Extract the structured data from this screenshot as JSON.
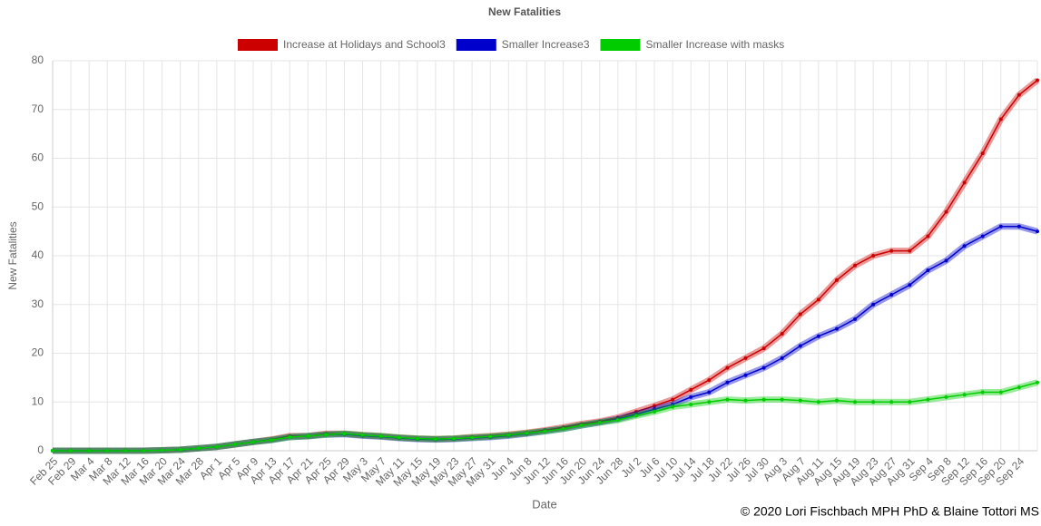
{
  "chart_data": {
    "type": "line",
    "title": "New Fatalities",
    "x_label": "Date",
    "y_label": "New Fatalities",
    "copyright": "© 2020 Lori Fischbach MPH PhD & Blaine Tottori MS",
    "categories": [
      "Feb 25",
      "Feb 29",
      "Mar 4",
      "Mar 8",
      "Mar 12",
      "Mar 16",
      "Mar 20",
      "Mar 24",
      "Mar 28",
      "Apr 1",
      "Apr 5",
      "Apr 9",
      "Apr 13",
      "Apr 17",
      "Apr 21",
      "Apr 25",
      "Apr 29",
      "May 3",
      "May 7",
      "May 11",
      "May 15",
      "May 19",
      "May 23",
      "May 27",
      "May 31",
      "Jun 4",
      "Jun 8",
      "Jun 12",
      "Jun 16",
      "Jun 20",
      "Jun 24",
      "Jun 28",
      "Jul 2",
      "Jul 6",
      "Jul 10",
      "Jul 14",
      "Jul 18",
      "Jul 22",
      "Jul 26",
      "Jul 30",
      "Aug 3",
      "Aug 7",
      "Aug 11",
      "Aug 15",
      "Aug 19",
      "Aug 23",
      "Aug 27",
      "Aug 31",
      "Sep 4",
      "Sep 8",
      "Sep 12",
      "Sep 16",
      "Sep 20",
      "Sep 24",
      null
    ],
    "series": [
      {
        "name": "Increase at Holidays and School3",
        "color": "#cc0000",
        "values": [
          0,
          0,
          0,
          0,
          0,
          0,
          0.1,
          0.2,
          0.5,
          0.8,
          1.3,
          1.8,
          2.3,
          3,
          3,
          3.5,
          3.5,
          3.2,
          3,
          2.7,
          2.5,
          2.4,
          2.5,
          2.8,
          3,
          3.3,
          3.7,
          4.2,
          4.8,
          5.5,
          6,
          6.8,
          8,
          9.2,
          10.5,
          12.5,
          14.5,
          17,
          19,
          21,
          24,
          28,
          31,
          35,
          38,
          40,
          41,
          41,
          44,
          49,
          55,
          61,
          68,
          73,
          76
        ]
      },
      {
        "name": "Smaller Increase3",
        "color": "#0000cc",
        "values": [
          0,
          0,
          0,
          0,
          0,
          0,
          0.1,
          0.2,
          0.5,
          0.8,
          1.3,
          1.8,
          2.2,
          2.8,
          3,
          3.3,
          3.4,
          3.1,
          2.9,
          2.6,
          2.4,
          2.3,
          2.4,
          2.6,
          2.8,
          3.1,
          3.5,
          4,
          4.5,
          5.2,
          5.8,
          6.5,
          7.5,
          8.5,
          9.5,
          11,
          12,
          14,
          15.5,
          17,
          19,
          21.5,
          23.5,
          25,
          27,
          30,
          32,
          34,
          37,
          39,
          42,
          44,
          46,
          46,
          45
        ]
      },
      {
        "name": "Smaller Increase with masks",
        "color": "#00cc00",
        "values": [
          0,
          0,
          0,
          0,
          0,
          0,
          0.1,
          0.2,
          0.5,
          0.8,
          1.3,
          1.8,
          2.2,
          2.8,
          3,
          3.3,
          3.5,
          3.2,
          3,
          2.7,
          2.5,
          2.4,
          2.5,
          2.7,
          2.9,
          3.2,
          3.6,
          4,
          4.5,
          5.2,
          5.8,
          6.3,
          7.2,
          8,
          9,
          9.5,
          10,
          10.5,
          10.3,
          10.5,
          10.5,
          10.3,
          10,
          10.3,
          10,
          10,
          10,
          10,
          10.5,
          11,
          11.5,
          12,
          12,
          13,
          14
        ]
      }
    ],
    "ylim": [
      0,
      80
    ],
    "yticks": [
      0,
      10,
      20,
      30,
      40,
      50,
      60,
      70,
      80
    ],
    "grid": true,
    "legend": "top"
  }
}
